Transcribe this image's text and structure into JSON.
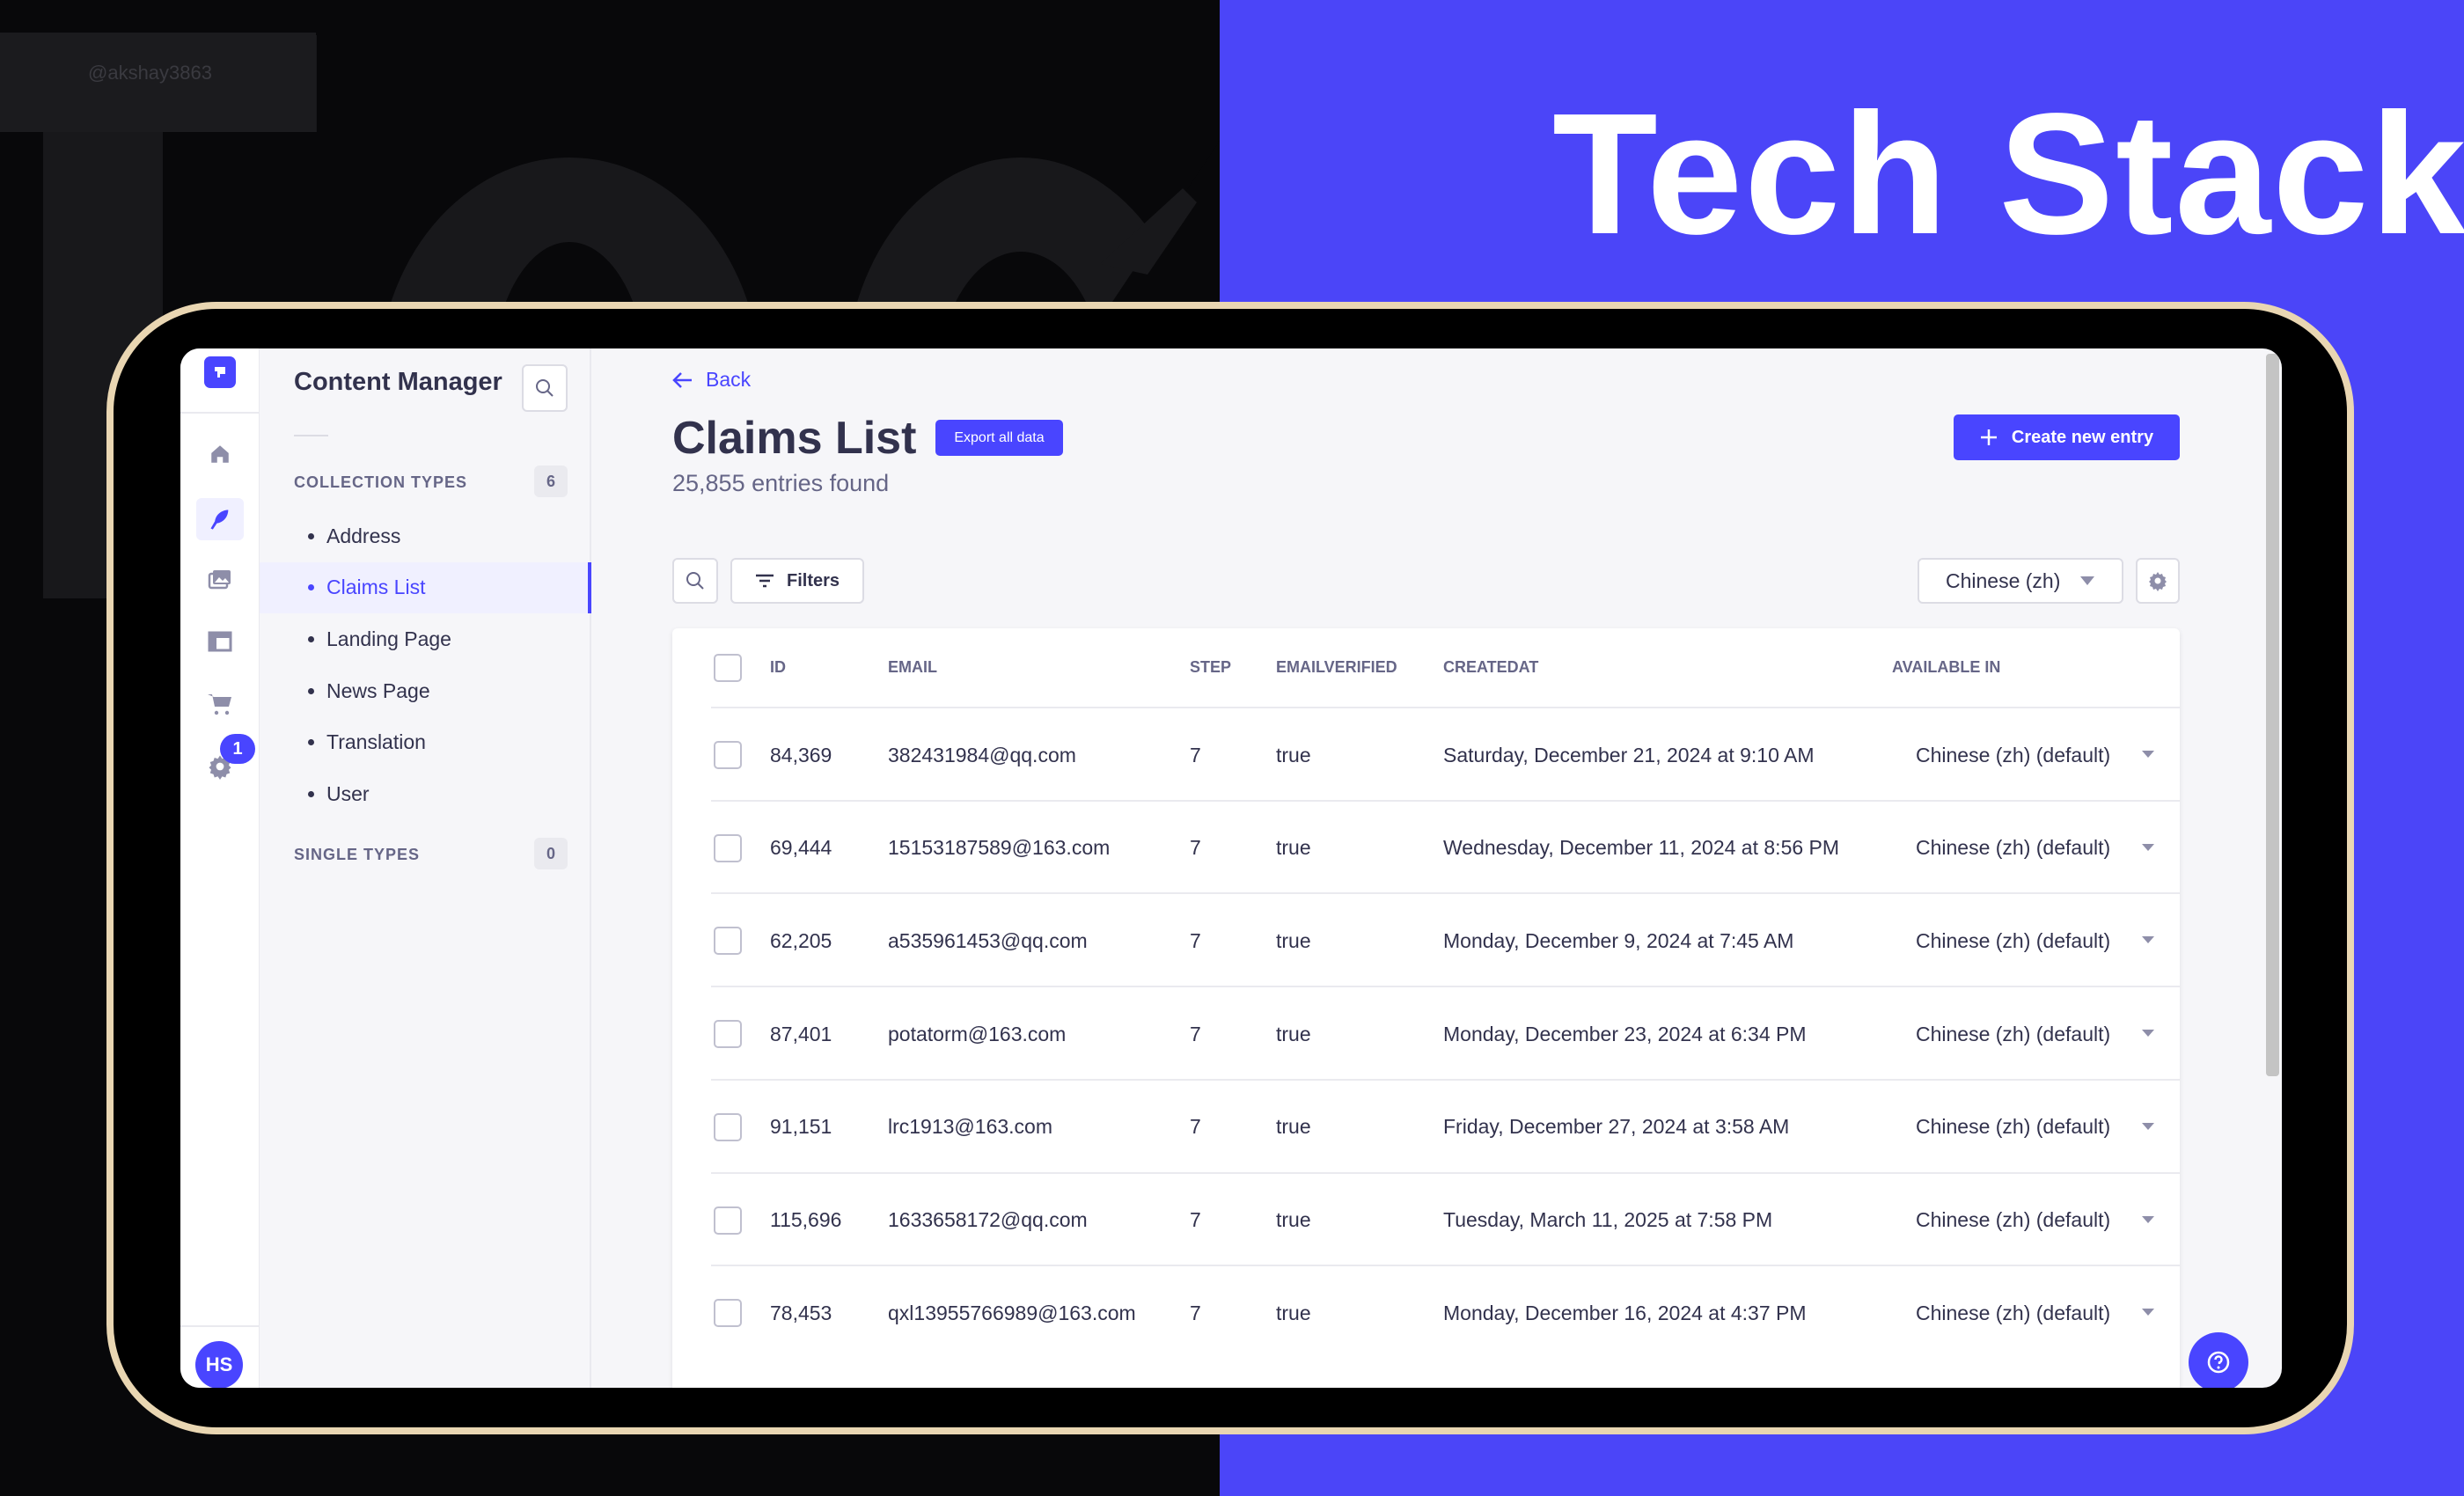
{
  "watermark": "@akshay3863",
  "background_letters": "Tec",
  "banner_title": "Tech Stack",
  "colors": {
    "accent": "#4945ff",
    "banner_blue": "#4b45f8",
    "frame_gold": "#e9d6b2"
  },
  "nav": {
    "icons": [
      "logo-icon",
      "home-icon",
      "feather-icon",
      "image-icon",
      "layout-icon",
      "cart-icon",
      "gear-icon"
    ],
    "settings_badge": "1",
    "avatar_initials": "HS"
  },
  "sidebar": {
    "title": "Content Manager",
    "collection_label": "COLLECTION TYPES",
    "collection_count": "6",
    "items": [
      {
        "label": "Address"
      },
      {
        "label": "Claims List",
        "active": true
      },
      {
        "label": "Landing Page"
      },
      {
        "label": "News Page"
      },
      {
        "label": "Translation"
      },
      {
        "label": "User"
      }
    ],
    "single_label": "SINGLE TYPES",
    "single_count": "0"
  },
  "header": {
    "back": "Back",
    "title": "Claims List",
    "export": "Export all data",
    "subtitle": "25,855 entries found",
    "create": "Create new entry"
  },
  "toolbar": {
    "filters": "Filters",
    "locale": "Chinese (zh)"
  },
  "table": {
    "columns": [
      "ID",
      "EMAIL",
      "STEP",
      "EMAILVERIFIED",
      "CREATEDAT",
      "AVAILABLE IN"
    ],
    "rows": [
      {
        "id": "84,369",
        "email": "382431984@qq.com",
        "step": "7",
        "verified": "true",
        "created": "Saturday, December 21, 2024 at 9:10 AM",
        "available": "Chinese (zh) (default)"
      },
      {
        "id": "69,444",
        "email": "15153187589@163.com",
        "step": "7",
        "verified": "true",
        "created": "Wednesday, December 11, 2024 at 8:56 PM",
        "available": "Chinese (zh) (default)"
      },
      {
        "id": "62,205",
        "email": "a535961453@qq.com",
        "step": "7",
        "verified": "true",
        "created": "Monday, December 9, 2024 at 7:45 AM",
        "available": "Chinese (zh) (default)"
      },
      {
        "id": "87,401",
        "email": "potatorm@163.com",
        "step": "7",
        "verified": "true",
        "created": "Monday, December 23, 2024 at 6:34 PM",
        "available": "Chinese (zh) (default)"
      },
      {
        "id": "91,151",
        "email": "lrc1913@163.com",
        "step": "7",
        "verified": "true",
        "created": "Friday, December 27, 2024 at 3:58 AM",
        "available": "Chinese (zh) (default)"
      },
      {
        "id": "115,696",
        "email": "1633658172@qq.com",
        "step": "7",
        "verified": "true",
        "created": "Tuesday, March 11, 2025 at 7:58 PM",
        "available": "Chinese (zh) (default)"
      },
      {
        "id": "78,453",
        "email": "qxl13955766989@163.com",
        "step": "7",
        "verified": "true",
        "created": "Monday, December 16, 2024 at 4:37 PM",
        "available": "Chinese (zh) (default)"
      }
    ]
  }
}
